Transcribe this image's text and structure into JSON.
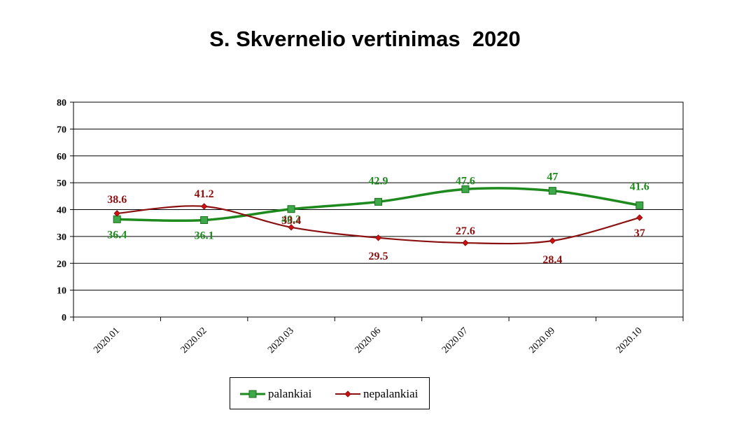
{
  "chart_data": {
    "type": "line",
    "title": "S. Skvernelio vertinimas  2020",
    "categories": [
      "2020.01",
      "2020.02",
      "2020.03",
      "2020.06",
      "2020.07",
      "2020.09",
      "2020.10"
    ],
    "ylim": [
      0,
      80
    ],
    "yticks": [
      0,
      10,
      20,
      30,
      40,
      50,
      60,
      70,
      80
    ],
    "grid": true,
    "legend_position": "bottom",
    "series": [
      {
        "name": "palankiai",
        "values": [
          36.4,
          36.1,
          40.2,
          42.9,
          47.6,
          47,
          41.6
        ],
        "labels": [
          "36.4",
          "36.1",
          "40.2",
          "42.9",
          "47.6",
          "47",
          "41.6"
        ],
        "color": "#1e8a1e",
        "marker": "square"
      },
      {
        "name": "nepalankiai",
        "values": [
          38.6,
          41.2,
          33.4,
          29.5,
          27.6,
          28.4,
          37
        ],
        "labels": [
          "38.6",
          "41.2",
          "33.4",
          "29.5",
          "27.6",
          "28.4",
          "37"
        ],
        "color": "#8b1010",
        "marker": "diamond"
      }
    ]
  }
}
